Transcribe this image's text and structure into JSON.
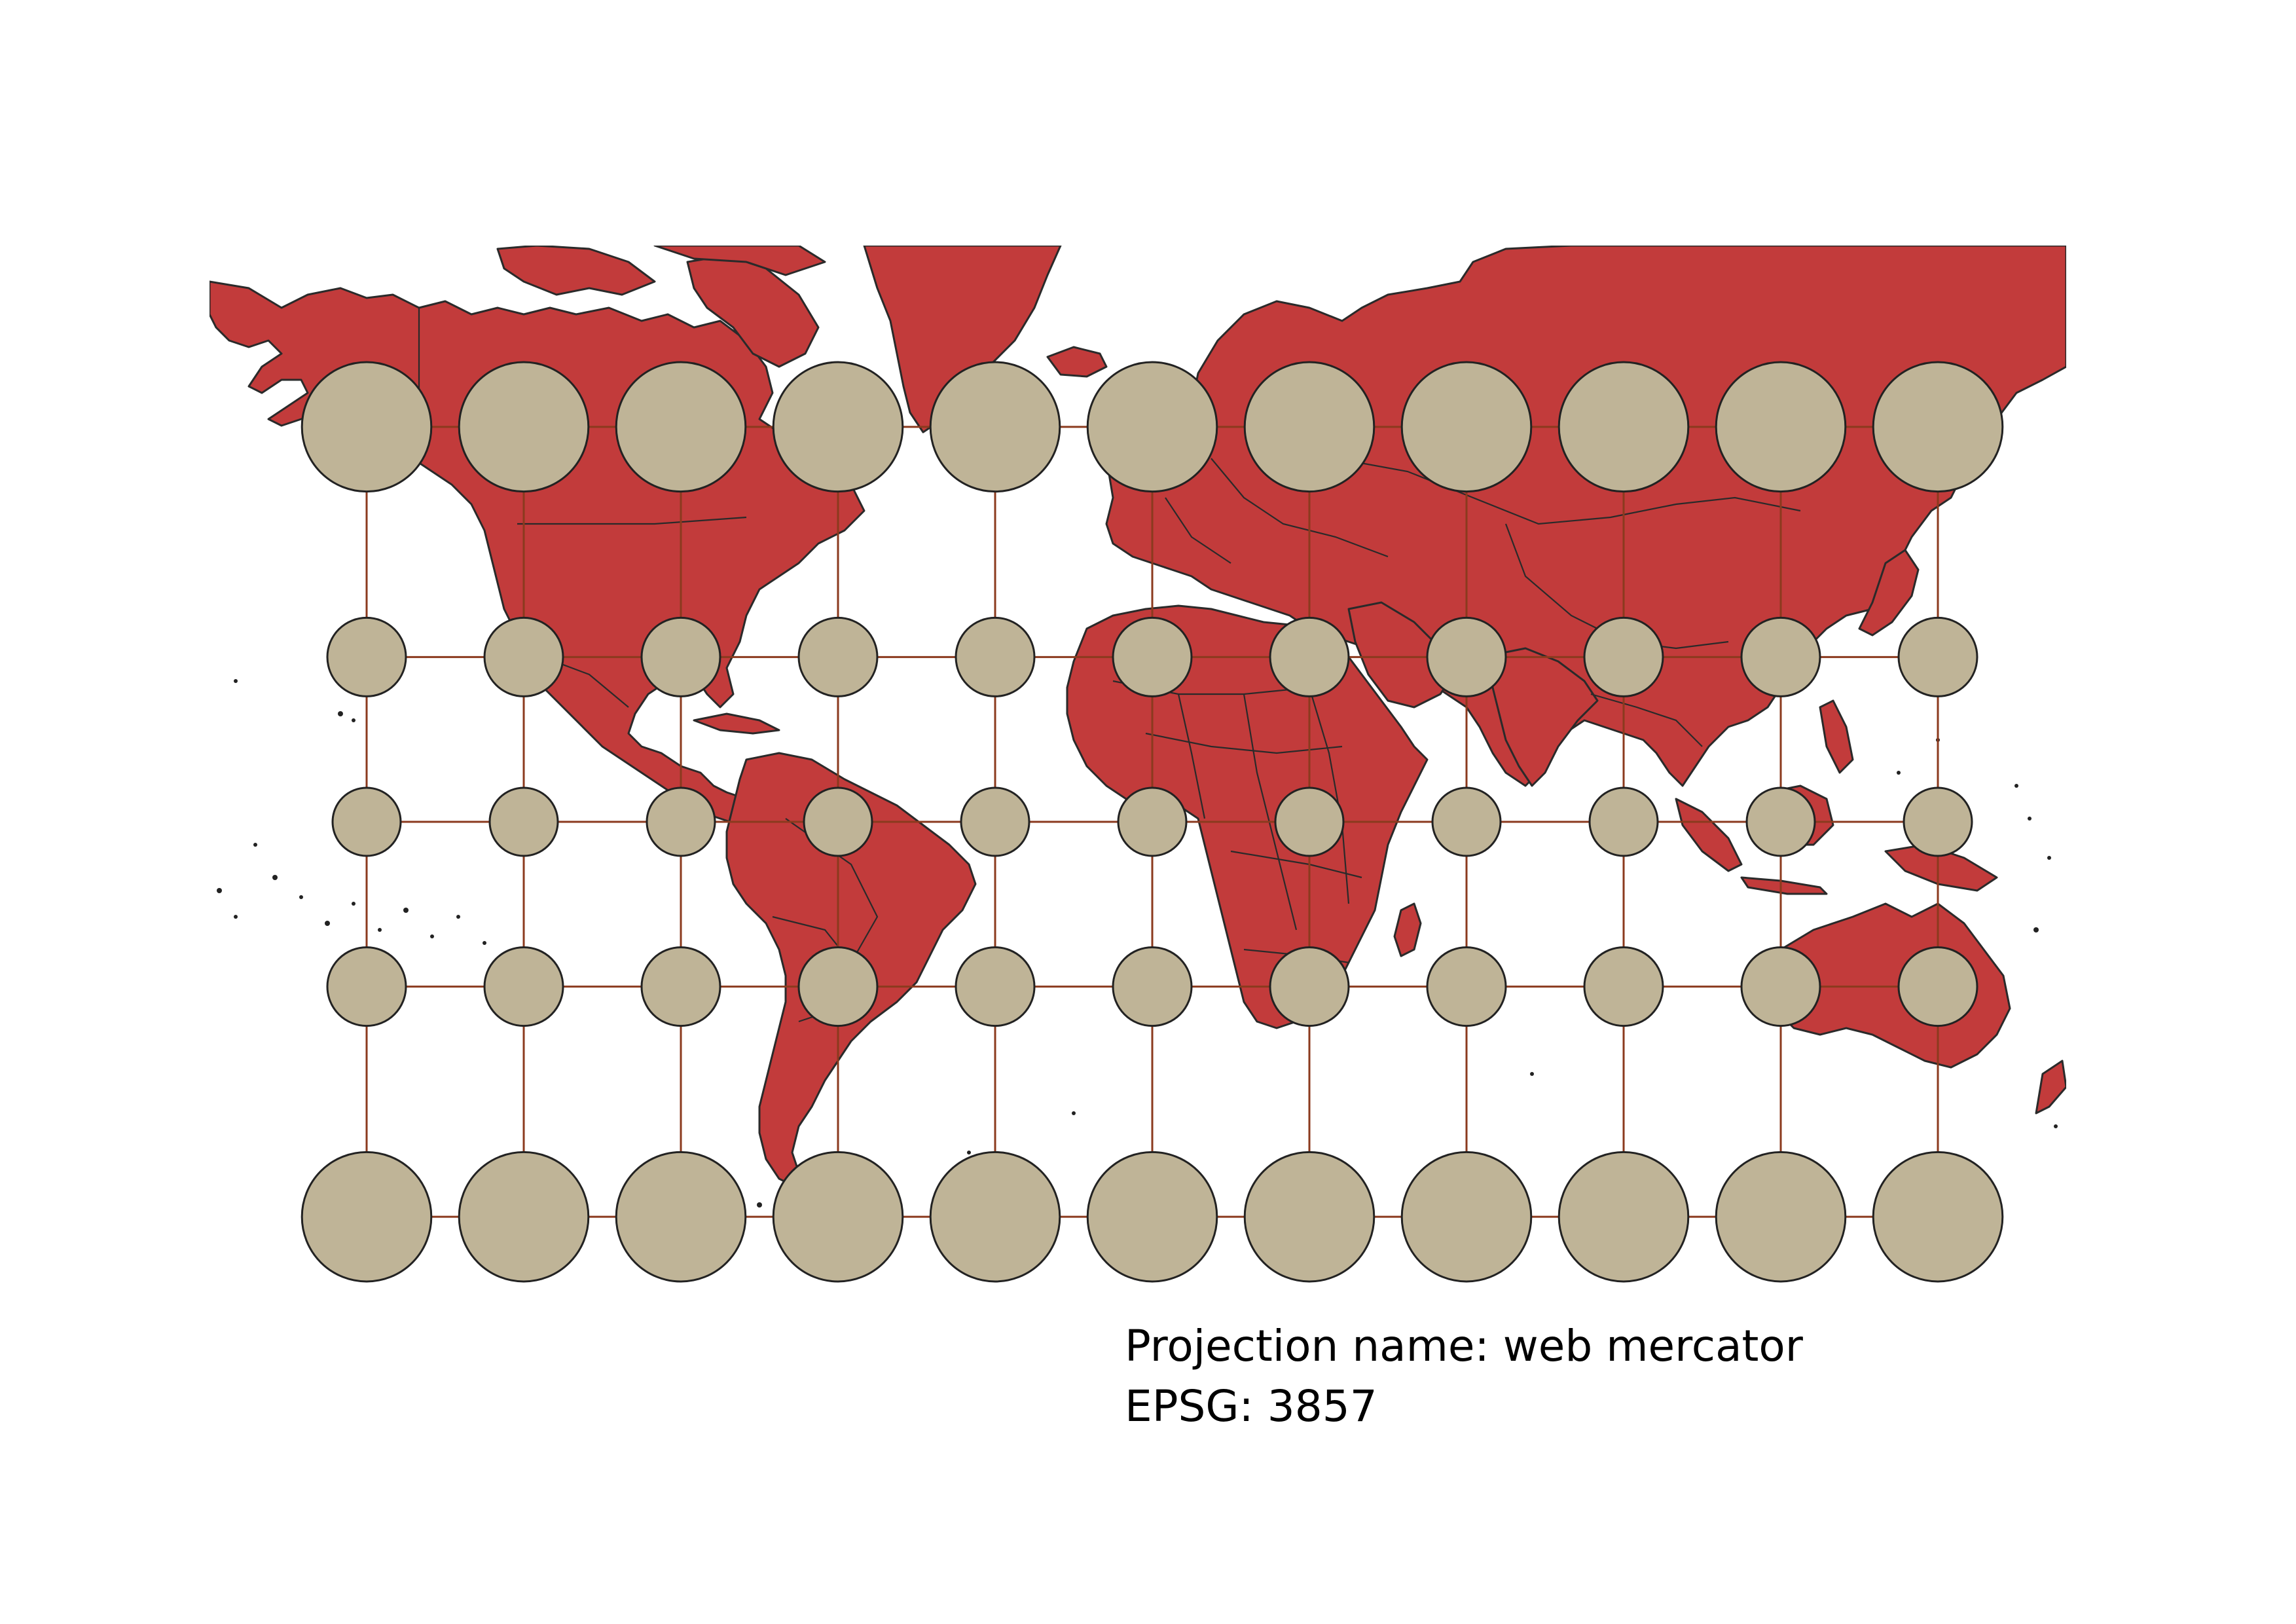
{
  "map": {
    "projection_name": "web mercator",
    "epsg": "3857",
    "graticule": {
      "longitudes_deg": [
        -150,
        -120,
        -90,
        -60,
        -30,
        0,
        30,
        60,
        90,
        120,
        150
      ],
      "latitudes_deg": [
        60,
        30,
        0,
        -30,
        -60
      ]
    },
    "colors": {
      "land": "#c23b3b",
      "coastline": "#2a2a2a",
      "graticule": "#8b3a1e",
      "tissot_circle": "#bfb497",
      "background": "#ffffff"
    }
  },
  "caption": {
    "line1_label": "Projection name:",
    "line1_value": "web mercator",
    "line2_label": "EPSG:",
    "line2_value": "3857"
  }
}
